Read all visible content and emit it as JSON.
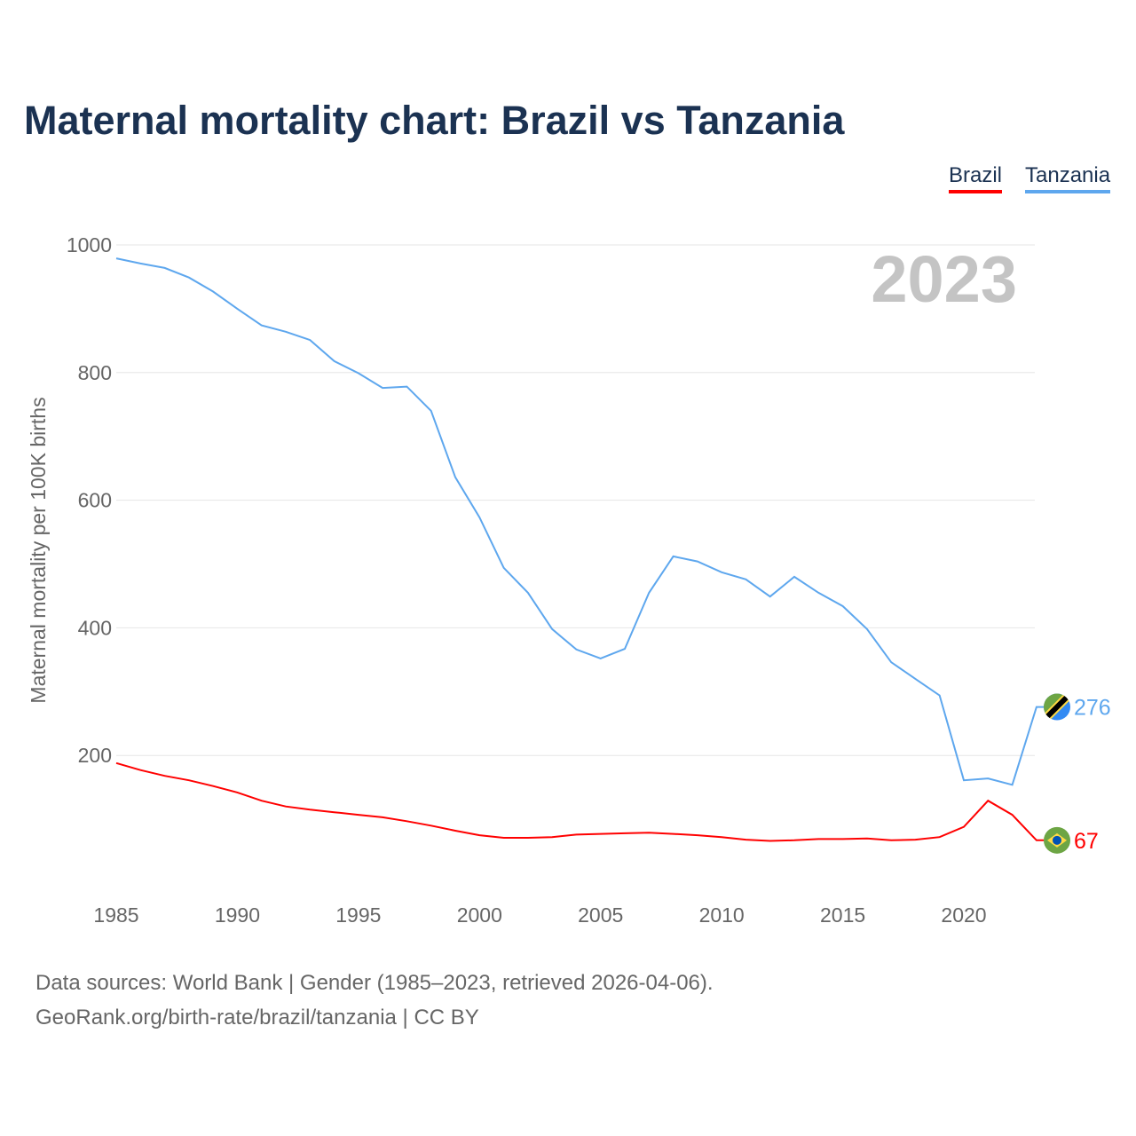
{
  "chart_data": {
    "type": "line",
    "title": "Maternal mortality chart: Brazil vs Tanzania",
    "xlabel": "",
    "ylabel": "Maternal mortality per 100K births",
    "year_label": "2023",
    "xlim": [
      1985,
      2023
    ],
    "ylim": [
      0,
      1000
    ],
    "x_ticks": [
      1985,
      1990,
      1995,
      2000,
      2005,
      2010,
      2015,
      2020
    ],
    "y_ticks": [
      200,
      400,
      600,
      800,
      1000
    ],
    "grid": true,
    "legend_position": "top-right",
    "x": [
      1985,
      1986,
      1987,
      1988,
      1989,
      1990,
      1991,
      1992,
      1993,
      1994,
      1995,
      1996,
      1997,
      1998,
      1999,
      2000,
      2001,
      2002,
      2003,
      2004,
      2005,
      2006,
      2007,
      2008,
      2009,
      2010,
      2011,
      2012,
      2013,
      2014,
      2015,
      2016,
      2017,
      2018,
      2019,
      2020,
      2021,
      2022,
      2023
    ],
    "series": [
      {
        "name": "Brazil",
        "color": "#ff0000",
        "end_label": "67",
        "flag": "brazil-flag",
        "values": [
          188,
          177,
          168,
          161,
          152,
          142,
          129,
          120,
          115,
          111,
          107,
          103,
          97,
          90,
          82,
          75,
          71,
          71,
          72,
          76,
          77,
          78,
          79,
          77,
          75,
          72,
          68,
          66,
          67,
          69,
          69,
          70,
          67,
          68,
          72,
          88,
          129,
          107,
          67
        ]
      },
      {
        "name": "Tanzania",
        "color": "#5ea7ee",
        "end_label": "276",
        "flag": "tanzania-flag",
        "values": [
          979,
          971,
          964,
          949,
          927,
          900,
          874,
          864,
          851,
          818,
          799,
          776,
          778,
          740,
          636,
          573,
          494,
          455,
          398,
          366,
          352,
          367,
          455,
          512,
          504,
          487,
          476,
          449,
          480,
          455,
          434,
          398,
          346,
          320,
          294,
          161,
          164,
          154,
          276
        ]
      }
    ]
  },
  "footer": {
    "line1": "Data sources: World Bank | Gender (1985–2023, retrieved 2026-04-06).",
    "line2": "GeoRank.org/birth-rate/brazil/tanzania | CC BY"
  }
}
